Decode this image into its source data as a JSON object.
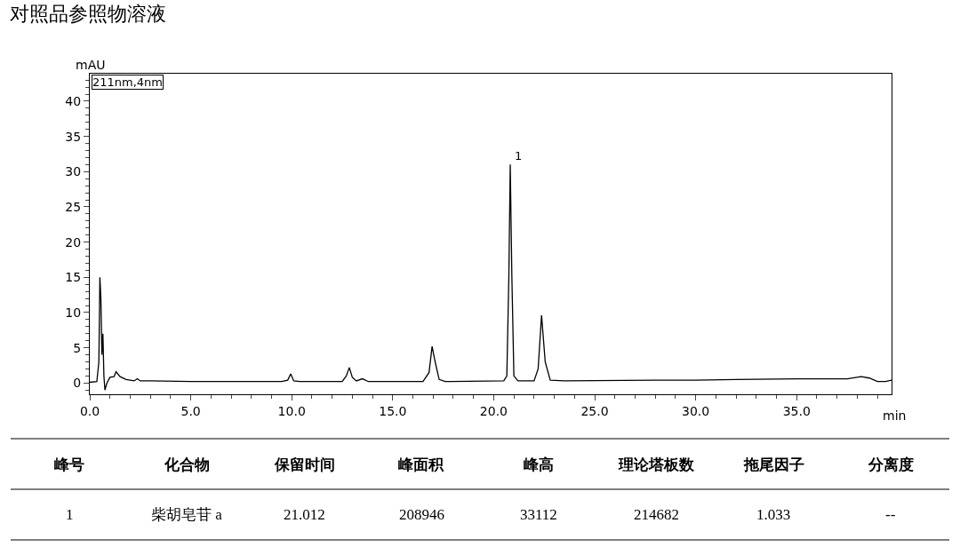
{
  "chart_data": {
    "type": "line",
    "title": "对照品参照物溶液",
    "xlabel": "min",
    "ylabel": "mAU",
    "xlim": [
      0,
      39.7
    ],
    "ylim": [
      -1.6,
      43.9
    ],
    "xticks": [
      {
        "value": 0,
        "label": "0.0"
      },
      {
        "value": 5,
        "label": "5.0"
      },
      {
        "value": 10,
        "label": "10.0"
      },
      {
        "value": 15,
        "label": "15.0"
      },
      {
        "value": 20,
        "label": "20.0"
      },
      {
        "value": 25,
        "label": "25.0"
      },
      {
        "value": 30,
        "label": "30.0"
      },
      {
        "value": 35,
        "label": "35.0"
      }
    ],
    "yticks": [
      0,
      5,
      10,
      15,
      20,
      25,
      30,
      35,
      40
    ],
    "marker": "none",
    "line_style": "solid",
    "series": [
      {
        "color": "#000000",
        "x": [
          0,
          0.35,
          0.45,
          0.5,
          0.55,
          0.6,
          0.65,
          0.7,
          0.75,
          0.85,
          1.0,
          1.2,
          1.3,
          1.5,
          1.8,
          2.2,
          2.35,
          2.5,
          3,
          5,
          9.5,
          9.8,
          9.95,
          10.1,
          10.4,
          12.5,
          12.7,
          12.85,
          13.0,
          13.2,
          13.5,
          13.8,
          14.5,
          16.5,
          16.8,
          16.95,
          17.1,
          17.3,
          17.6,
          20.5,
          20.65,
          20.75,
          20.82,
          20.9,
          21.0,
          21.2,
          22.0,
          22.2,
          22.37,
          22.55,
          22.8,
          23.5,
          28,
          30,
          32,
          35,
          37.5,
          38.2,
          38.6,
          39.0,
          39.4,
          39.7
        ],
        "values": [
          0.1,
          0.2,
          3,
          15,
          12,
          4,
          7,
          1,
          -1,
          0,
          0.8,
          0.9,
          1.6,
          0.9,
          0.5,
          0.3,
          0.6,
          0.3,
          0.3,
          0.2,
          0.2,
          0.4,
          1.3,
          0.3,
          0.2,
          0.2,
          1.0,
          2.2,
          0.8,
          0.3,
          0.6,
          0.2,
          0.2,
          0.2,
          1.5,
          5.2,
          3,
          0.5,
          0.2,
          0.3,
          1,
          15,
          31,
          15,
          1,
          0.3,
          0.3,
          2,
          9.6,
          3,
          0.4,
          0.3,
          0.4,
          0.4,
          0.5,
          0.6,
          0.6,
          0.9,
          0.7,
          0.2,
          0.2,
          0.4
        ]
      }
    ],
    "annotations": [
      "211nm,4nm",
      {
        "text": "1",
        "x": 20.82,
        "y": 31
      },
      "峰号",
      "化合物",
      "保留时间",
      "峰面积",
      "峰高",
      "理论塔板数",
      "拖尾因子",
      "分离度",
      "1",
      "柴胡皂苷 a",
      "21.012",
      "208946",
      "33112",
      "214682",
      "1.033",
      "--"
    ]
  }
}
